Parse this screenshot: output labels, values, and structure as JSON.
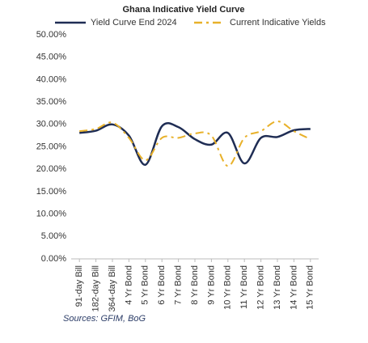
{
  "chart_data": {
    "type": "line",
    "title": "Ghana Indicative Yield Curve",
    "categories": [
      "91-day Bill",
      "182-day Bill",
      "364-day Bill",
      "4 Yr Bond",
      "5 Yr Bond",
      "6 Yr Bond",
      "7 Yr Bond",
      "8 Yr Bond",
      "9 Yr Bond",
      "10 Yr Bond",
      "11 Yr Bond",
      "12 Yr Bond",
      "13 Yr Bond",
      "14 Yr Bond",
      "15 Yr Bond"
    ],
    "series": [
      {
        "name": "Yield Curve End 2024",
        "color": "#1f2d54",
        "style": "solid",
        "values": [
          28.1,
          28.6,
          30.0,
          27.5,
          21.0,
          29.6,
          29.4,
          26.7,
          25.5,
          28.1,
          21.3,
          27.0,
          27.2,
          28.7,
          29.0
        ]
      },
      {
        "name": "Current Indicative Yields",
        "color": "#e8b12a",
        "style": "dashdot",
        "values": [
          28.5,
          29.0,
          30.4,
          27.0,
          22.0,
          27.0,
          27.0,
          28.0,
          27.5,
          20.7,
          27.0,
          28.5,
          30.7,
          28.5,
          26.7
        ]
      }
    ],
    "ylim": [
      0,
      50
    ],
    "yticks": [
      {
        "value": 0,
        "label": "0.00%"
      },
      {
        "value": 5,
        "label": "5.00%"
      },
      {
        "value": 10,
        "label": "10.00%"
      },
      {
        "value": 15,
        "label": "15.00%"
      },
      {
        "value": 20,
        "label": "20.00%"
      },
      {
        "value": 25,
        "label": "25.00%"
      },
      {
        "value": 30,
        "label": "30.00%"
      },
      {
        "value": 35,
        "label": "35.00%"
      },
      {
        "value": 40,
        "label": "40.00%"
      },
      {
        "value": 45,
        "label": "45.00%"
      },
      {
        "value": 50,
        "label": "50.00%"
      }
    ],
    "grid": false,
    "source": "Sources: GFIM, BoG"
  }
}
